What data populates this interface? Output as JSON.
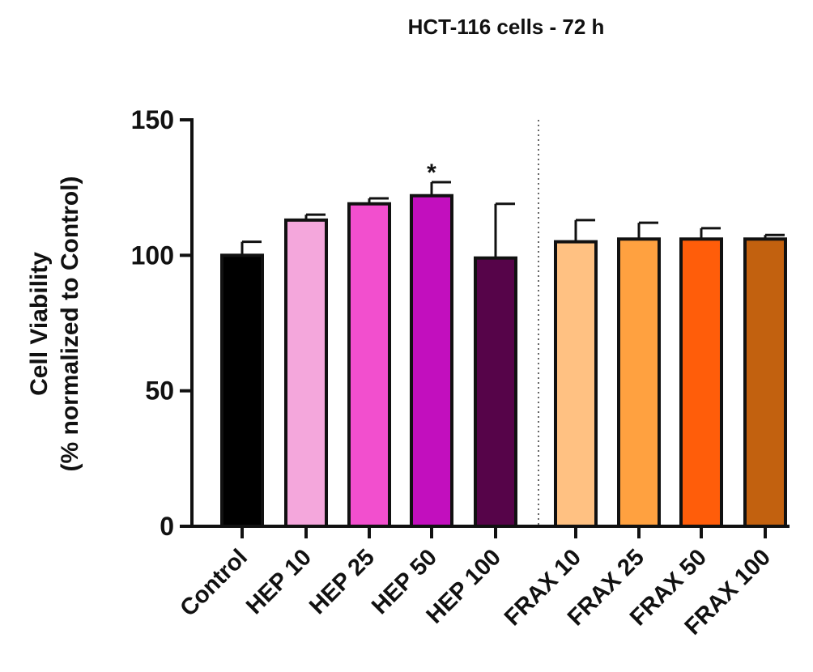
{
  "chart_data": {
    "type": "bar",
    "title": "HCT-116 cells - 72 h",
    "ylabel_lines": [
      "Cell Viability",
      "(% normalized to Control)"
    ],
    "xlabel": "",
    "ylim": [
      0,
      150
    ],
    "yticks": [
      0,
      50,
      100,
      150
    ],
    "grid": false,
    "legend": "none",
    "groups": [
      {
        "categories": [
          "Control",
          "HEP 10",
          "HEP 25",
          "HEP 50",
          "HEP 100"
        ]
      },
      {
        "categories": [
          "FRAX 10",
          "FRAX 25",
          "FRAX 50",
          "FRAX 100"
        ]
      }
    ],
    "categories": [
      "Control",
      "HEP 10",
      "HEP 25",
      "HEP 50",
      "HEP 100",
      "FRAX 10",
      "FRAX 25",
      "FRAX 50",
      "FRAX 100"
    ],
    "values": [
      100,
      113,
      119,
      122,
      99,
      105,
      106,
      106,
      106
    ],
    "errors": [
      5,
      2,
      2,
      5,
      20,
      8,
      6,
      4,
      1.5
    ],
    "colors": [
      "#000000",
      "#f4a7dc",
      "#f24fce",
      "#c20fbe",
      "#560449",
      "#ffc182",
      "#ffa140",
      "#ff5d0a",
      "#c2610f"
    ],
    "significance": [
      {
        "category": "HEP 50",
        "label": "*"
      }
    ]
  }
}
